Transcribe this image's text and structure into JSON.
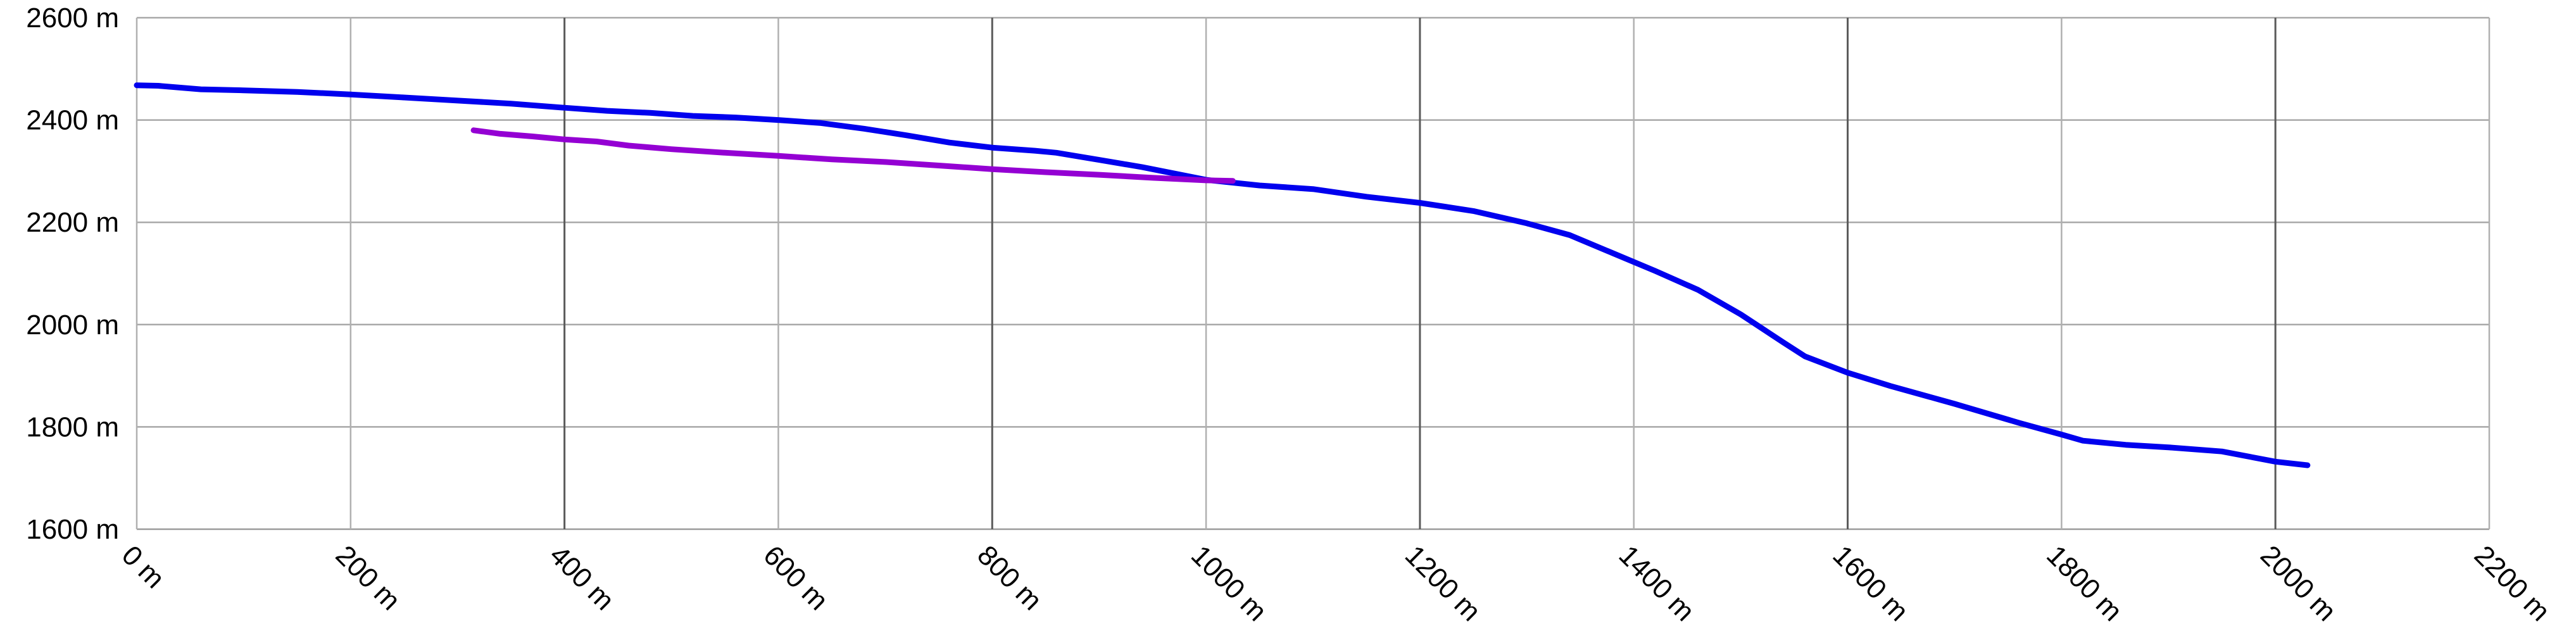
{
  "chart_data": {
    "type": "line",
    "title": "",
    "xlabel": "",
    "ylabel": "",
    "xlim": [
      0,
      2200
    ],
    "ylim": [
      1600,
      2600
    ],
    "x_ticks": [
      0,
      200,
      400,
      600,
      800,
      1000,
      1200,
      1400,
      1600,
      1800,
      2000,
      2200
    ],
    "x_tick_labels": [
      "0 m",
      "200 m",
      "400 m",
      "600 m",
      "800 m",
      "1000 m",
      "1200 m",
      "1400 m",
      "1600 m",
      "1800 m",
      "2000 m",
      "2200 m"
    ],
    "y_ticks": [
      1600,
      1800,
      2000,
      2200,
      2400,
      2600
    ],
    "y_tick_labels": [
      "1600 m",
      "1800 m",
      "2000 m",
      "2200 m",
      "2400 m",
      "2600 m"
    ],
    "grid": true,
    "series": [
      {
        "color": "#0000ee",
        "points": [
          [
            0,
            2468
          ],
          [
            20,
            2467
          ],
          [
            60,
            2460
          ],
          [
            100,
            2458
          ],
          [
            150,
            2455
          ],
          [
            200,
            2450
          ],
          [
            250,
            2444
          ],
          [
            300,
            2438
          ],
          [
            350,
            2432
          ],
          [
            400,
            2424
          ],
          [
            440,
            2418
          ],
          [
            480,
            2414
          ],
          [
            520,
            2408
          ],
          [
            560,
            2405
          ],
          [
            600,
            2400
          ],
          [
            640,
            2394
          ],
          [
            680,
            2383
          ],
          [
            720,
            2370
          ],
          [
            760,
            2356
          ],
          [
            800,
            2346
          ],
          [
            840,
            2340
          ],
          [
            860,
            2336
          ],
          [
            900,
            2322
          ],
          [
            940,
            2308
          ],
          [
            1000,
            2283
          ],
          [
            1050,
            2272
          ],
          [
            1100,
            2265
          ],
          [
            1150,
            2250
          ],
          [
            1200,
            2238
          ],
          [
            1250,
            2222
          ],
          [
            1300,
            2198
          ],
          [
            1340,
            2175
          ],
          [
            1380,
            2140
          ],
          [
            1420,
            2105
          ],
          [
            1460,
            2068
          ],
          [
            1500,
            2020
          ],
          [
            1540,
            1965
          ],
          [
            1560,
            1938
          ],
          [
            1600,
            1906
          ],
          [
            1640,
            1880
          ],
          [
            1700,
            1845
          ],
          [
            1760,
            1808
          ],
          [
            1800,
            1785
          ],
          [
            1820,
            1773
          ],
          [
            1860,
            1765
          ],
          [
            1900,
            1760
          ],
          [
            1950,
            1752
          ],
          [
            2000,
            1732
          ],
          [
            2030,
            1725
          ]
        ]
      },
      {
        "color": "#9400d3",
        "points": [
          [
            315,
            2380
          ],
          [
            340,
            2373
          ],
          [
            370,
            2368
          ],
          [
            400,
            2362
          ],
          [
            430,
            2358
          ],
          [
            460,
            2350
          ],
          [
            500,
            2343
          ],
          [
            550,
            2336
          ],
          [
            600,
            2330
          ],
          [
            650,
            2323
          ],
          [
            700,
            2318
          ],
          [
            750,
            2311
          ],
          [
            800,
            2304
          ],
          [
            850,
            2298
          ],
          [
            900,
            2293
          ],
          [
            950,
            2287
          ],
          [
            1000,
            2282
          ],
          [
            1025,
            2281
          ]
        ]
      }
    ]
  }
}
